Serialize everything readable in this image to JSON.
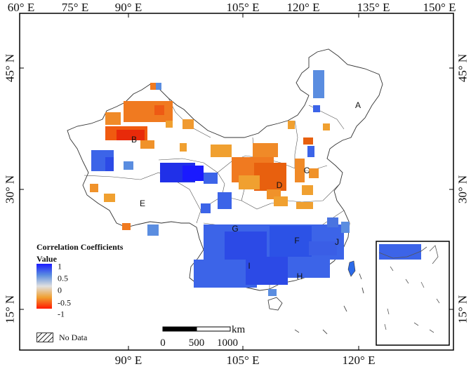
{
  "map": {
    "lon_ticks_top": [
      "60° E",
      "75° E",
      "90° E",
      "105° E",
      "120° E",
      "135° E",
      "150° E"
    ],
    "lon_ticks_bottom": [
      "90° E",
      "105° E",
      "120° E"
    ],
    "lat_ticks_left": [
      "45° N",
      "30° N",
      "15° N"
    ],
    "lat_ticks_right": [
      "45° N",
      "30° N",
      "15° N"
    ],
    "region_labels": [
      "A",
      "B",
      "C",
      "D",
      "E",
      "F",
      "G",
      "H",
      "I",
      "J"
    ]
  },
  "legend": {
    "title": "Correlation Coefficients",
    "subtitle": "Value",
    "ticks": [
      "1",
      "0.5",
      "0",
      "-0.5",
      "-1"
    ],
    "colors": {
      "high": "#1a1aff",
      "mid_high": "#5a8de0",
      "mid": "#e0e0e0",
      "mid_low": "#f0a030",
      "low": "#ff1a00"
    },
    "nodata_label": "No Data"
  },
  "scale_bar": {
    "unit": "km",
    "labels": [
      "0",
      "500",
      "1000"
    ]
  }
}
